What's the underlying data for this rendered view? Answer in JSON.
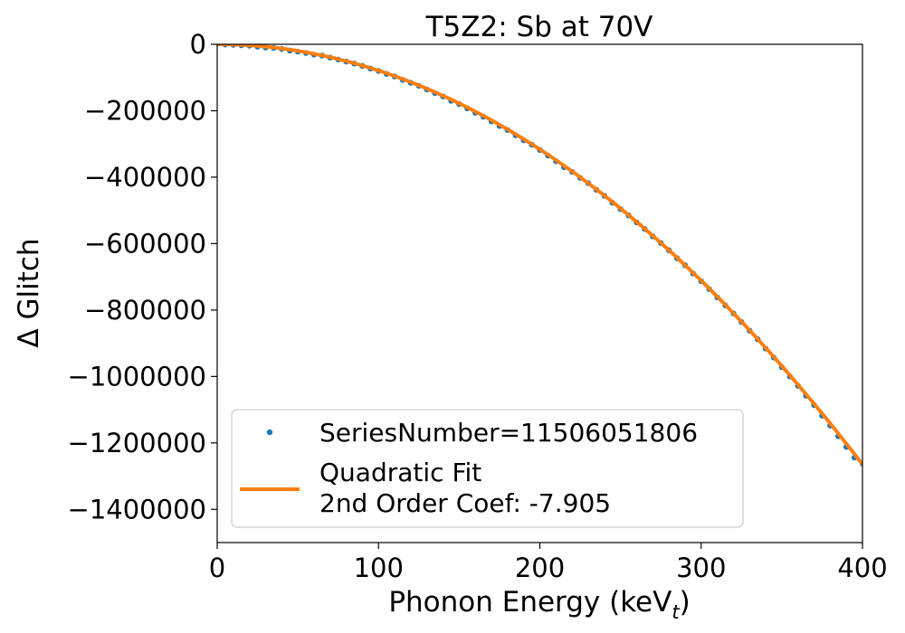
{
  "chart_data": {
    "type": "scatter",
    "title": "T5Z2: Sb at 70V",
    "xlabel_main": "Phonon Energy (keV",
    "xlabel_sub": "t",
    "xlabel_close": ")",
    "ylabel": "Δ Glitch",
    "xlim": [
      0,
      400
    ],
    "ylim": [
      -1500000,
      0
    ],
    "x_ticks": [
      0,
      100,
      200,
      300,
      400
    ],
    "x_tick_labels": [
      "0",
      "100",
      "200",
      "300",
      "400"
    ],
    "y_ticks": [
      0,
      -200000,
      -400000,
      -600000,
      -800000,
      -1000000,
      -1200000,
      -1400000
    ],
    "y_tick_labels": [
      "0",
      "−200000",
      "−400000",
      "−600000",
      "−800000",
      "−1000000",
      "−1200000",
      "−1400000"
    ],
    "grid": false,
    "legend_position": "lower-left",
    "series": [
      {
        "name": "SeriesNumber=11506051806",
        "kind": "scatter",
        "color": "#1f77b4",
        "x": [
          5,
          10,
          15,
          20,
          25,
          30,
          35,
          40,
          45,
          50,
          55,
          60,
          65,
          70,
          75,
          80,
          85,
          90,
          95,
          100,
          105,
          110,
          115,
          120,
          125,
          130,
          135,
          140,
          145,
          150,
          155,
          160,
          165,
          170,
          175,
          180,
          185,
          190,
          195,
          200,
          205,
          210,
          215,
          220,
          225,
          230,
          235,
          240,
          245,
          250,
          255,
          260,
          265,
          270,
          275,
          280,
          285,
          290,
          295,
          300,
          305,
          310,
          315,
          320,
          325,
          330,
          335,
          340,
          345,
          350,
          355,
          360,
          365,
          370,
          375,
          380,
          385,
          390,
          395,
          400
        ],
        "y": [
          -500,
          -1500,
          -3000,
          -4000,
          -7000,
          -10000,
          -11000,
          -14000,
          -19000,
          -22000,
          -26000,
          -31000,
          -34000,
          -40000,
          -46000,
          -52000,
          -58000,
          -65000,
          -73000,
          -80000,
          -89000,
          -97000,
          -107000,
          -116000,
          -125000,
          -136000,
          -147000,
          -157000,
          -170000,
          -180000,
          -193000,
          -206000,
          -218000,
          -232000,
          -246000,
          -258000,
          -274000,
          -289000,
          -302000,
          -318000,
          -335000,
          -352000,
          -370000,
          -384000,
          -402000,
          -418000,
          -438000,
          -456000,
          -477000,
          -496000,
          -515000,
          -536000,
          -556000,
          -578000,
          -598000,
          -620000,
          -644000,
          -665000,
          -690000,
          -713000,
          -737000,
          -762000,
          -786000,
          -810000,
          -836000,
          -862000,
          -888000,
          -916000,
          -943000,
          -972000,
          -1000000,
          -1028000,
          -1058000,
          -1086000,
          -1118000,
          -1148000,
          -1180000,
          -1212000,
          -1244000,
          -1262000
        ]
      },
      {
        "name": "Quadratic Fit",
        "name_line2": "2nd Order Coef: -7.905",
        "kind": "line",
        "color": "#ff7f0e",
        "coef2": -7.905,
        "coef1": 0,
        "coef0": 0
      }
    ]
  }
}
